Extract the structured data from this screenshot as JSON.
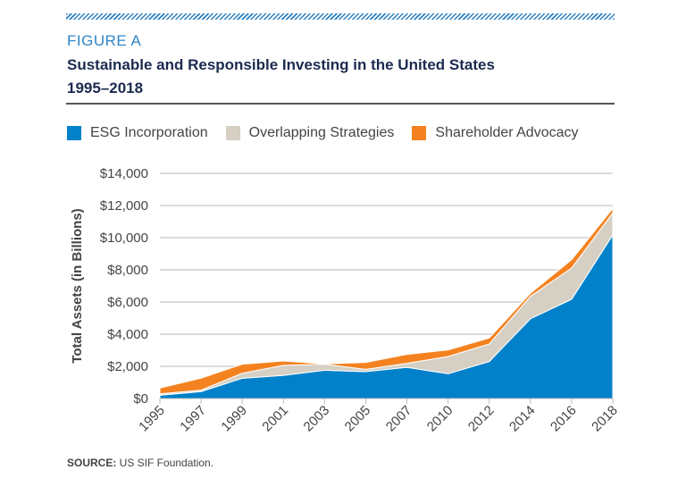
{
  "figure_label": "FIGURE A",
  "title_line1": "Sustainable and Responsible Investing in the United States",
  "title_line2": "1995–2018",
  "source_label": "SOURCE:",
  "source_text": " US SIF Foundation.",
  "chart_data": {
    "type": "area",
    "stacked": true,
    "title": "Sustainable and Responsible Investing in the United States 1995–2018",
    "xlabel": "",
    "ylabel": "Total Assets (in Billions)",
    "ylim": [
      0,
      14000
    ],
    "yticks": [
      0,
      2000,
      4000,
      6000,
      8000,
      10000,
      12000,
      14000
    ],
    "ytick_labels": [
      "$0",
      "$2,000",
      "$4,000",
      "$6,000",
      "$8,000",
      "$10,000",
      "$12,000",
      "$14,000"
    ],
    "categories": [
      "1995",
      "1997",
      "1999",
      "2001",
      "2003",
      "2005",
      "2007",
      "2010",
      "2012",
      "2014",
      "2016",
      "2018"
    ],
    "grid": true,
    "legend_placement": "top",
    "series": [
      {
        "name": "ESG Incorporation",
        "color": "#0081c9",
        "values": [
          200,
          430,
          1260,
          1440,
          1760,
          1670,
          1940,
          1540,
          2300,
          4960,
          6170,
          10170
        ]
      },
      {
        "name": "Overlapping Strategies",
        "color": "#d5cfc4",
        "values": [
          90,
          90,
          310,
          620,
          370,
          140,
          250,
          1070,
          1090,
          1390,
          1940,
          1370
        ]
      },
      {
        "name": "Shareholder Advocacy",
        "color": "#f58220",
        "values": [
          360,
          740,
          560,
          270,
          20,
          430,
          550,
          410,
          370,
          190,
          520,
          280
        ]
      }
    ]
  }
}
